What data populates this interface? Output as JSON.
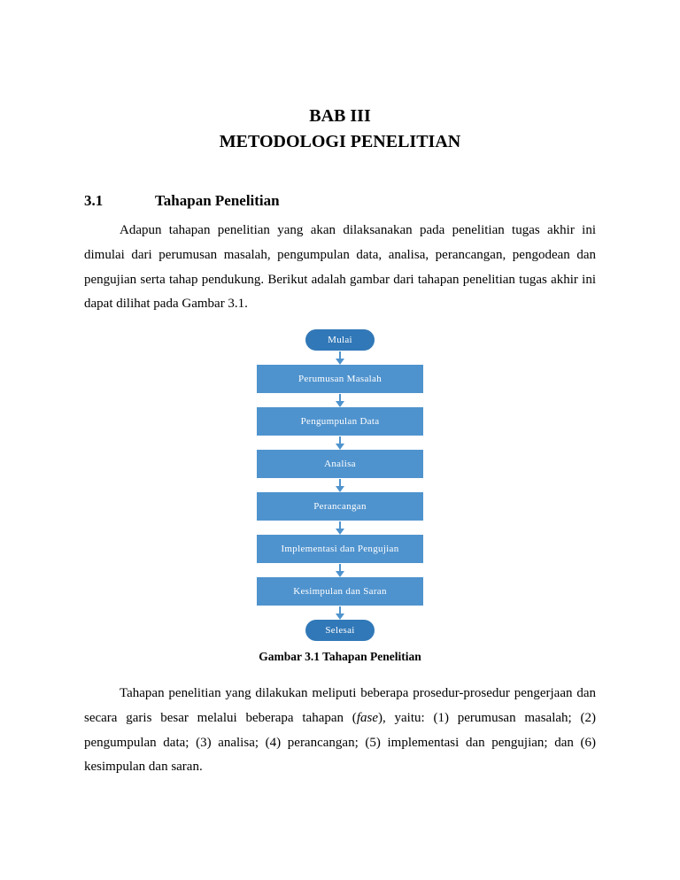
{
  "chapter": {
    "title": "BAB III",
    "subtitle": "METODOLOGI PENELITIAN"
  },
  "section": {
    "number": "3.1",
    "title": "Tahapan Penelitian"
  },
  "paragraph1": "Adapun tahapan penelitian yang akan dilaksanakan pada penelitian tugas akhir ini dimulai dari perumusan masalah, pengumpulan data, analisa, perancangan, pengodean dan pengujian serta tahap pendukung. Berikut adalah gambar dari tahapan penelitian tugas akhir ini dapat dilihat pada Gambar 3.1.",
  "flowchart": {
    "type": "flowchart",
    "background_color": "#ffffff",
    "arrow_color": "#4f93ce",
    "terminator_color": "#3178b8",
    "process_color": "#4f93ce",
    "text_color": "#ffffff",
    "node_fontsize": 11,
    "terminator_width": 78,
    "process_width": 188,
    "process_height": 34,
    "arrow_height": 16,
    "nodes": [
      {
        "id": "start",
        "shape": "terminator",
        "label": "Mulai"
      },
      {
        "id": "n1",
        "shape": "process",
        "label": "Perumusan Masalah"
      },
      {
        "id": "n2",
        "shape": "process",
        "label": "Pengumpulan Data"
      },
      {
        "id": "n3",
        "shape": "process",
        "label": "Analisa"
      },
      {
        "id": "n4",
        "shape": "process",
        "label": "Perancangan"
      },
      {
        "id": "n5",
        "shape": "process",
        "label": "Implementasi dan Pengujian"
      },
      {
        "id": "n6",
        "shape": "process",
        "label": "Kesimpulan dan Saran"
      },
      {
        "id": "end",
        "shape": "terminator",
        "label": "Selesai"
      }
    ],
    "edges": [
      {
        "from": "start",
        "to": "n1"
      },
      {
        "from": "n1",
        "to": "n2"
      },
      {
        "from": "n2",
        "to": "n3"
      },
      {
        "from": "n3",
        "to": "n4"
      },
      {
        "from": "n4",
        "to": "n5"
      },
      {
        "from": "n5",
        "to": "n6"
      },
      {
        "from": "n6",
        "to": "end"
      }
    ]
  },
  "caption": "Gambar 3.1 Tahapan Penelitian",
  "paragraph2_a": "Tahapan penelitian yang dilakukan meliputi beberapa prosedur-prosedur pengerjaan dan secara garis besar melalui beberapa tahapan (",
  "paragraph2_italic": "fase",
  "paragraph2_b": "), yaitu: (1) perumusan masalah; (2) pengumpulan data; (3) analisa; (4) perancangan; (5) implementasi dan pengujian; dan (6) kesimpulan dan saran."
}
